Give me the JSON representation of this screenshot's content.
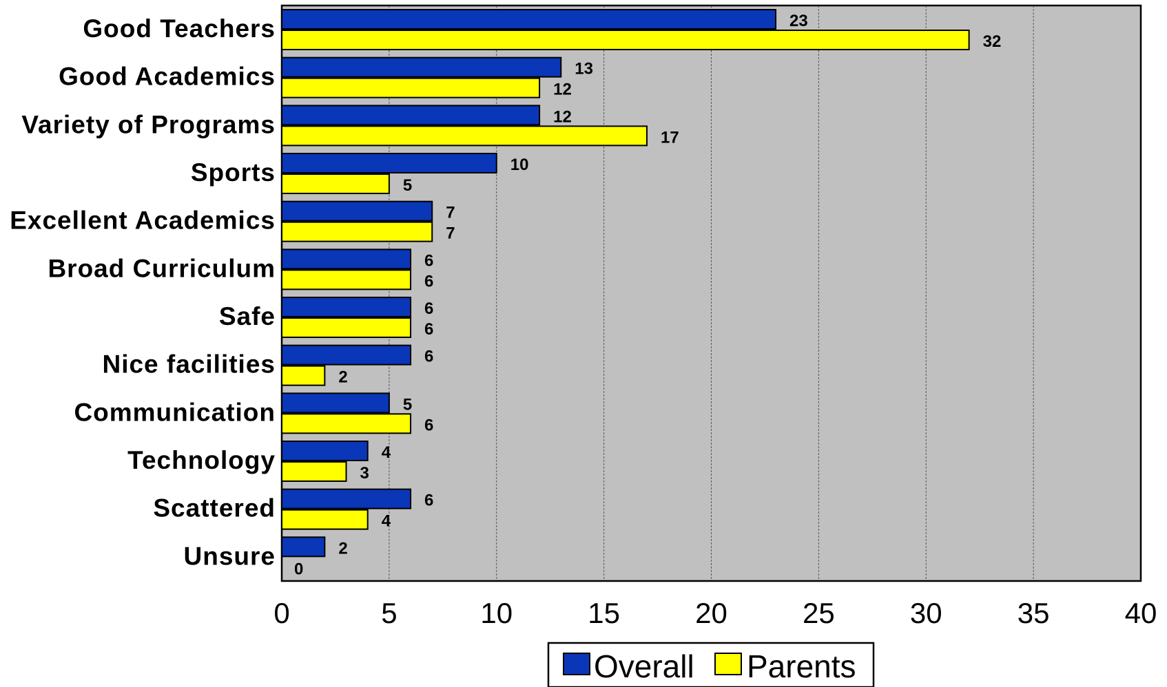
{
  "chart_data": {
    "type": "bar",
    "orientation": "horizontal",
    "categories": [
      "Good Teachers",
      "Good Academics",
      "Variety of Programs",
      "Sports",
      "Excellent Academics",
      "Broad Curriculum",
      "Safe",
      "Nice facilities",
      "Communication",
      "Technology",
      "Scattered",
      "Unsure"
    ],
    "series": [
      {
        "name": "Overall",
        "values": [
          23,
          13,
          12,
          10,
          7,
          6,
          6,
          6,
          5,
          4,
          6,
          2
        ],
        "color": "#0a36b8"
      },
      {
        "name": "Parents",
        "values": [
          32,
          12,
          17,
          5,
          7,
          6,
          6,
          2,
          6,
          3,
          4,
          0
        ],
        "color": "#ffff00"
      }
    ],
    "xlim": [
      0,
      40
    ],
    "xticks": [
      "0",
      "5",
      "10",
      "15",
      "20",
      "25",
      "30",
      "35",
      "40"
    ],
    "title": "",
    "xlabel": "",
    "ylabel": "",
    "grid": "vertical dashed",
    "plot_background": "#c0c0c0",
    "legend_position": "bottom-center",
    "data_labels": true
  }
}
